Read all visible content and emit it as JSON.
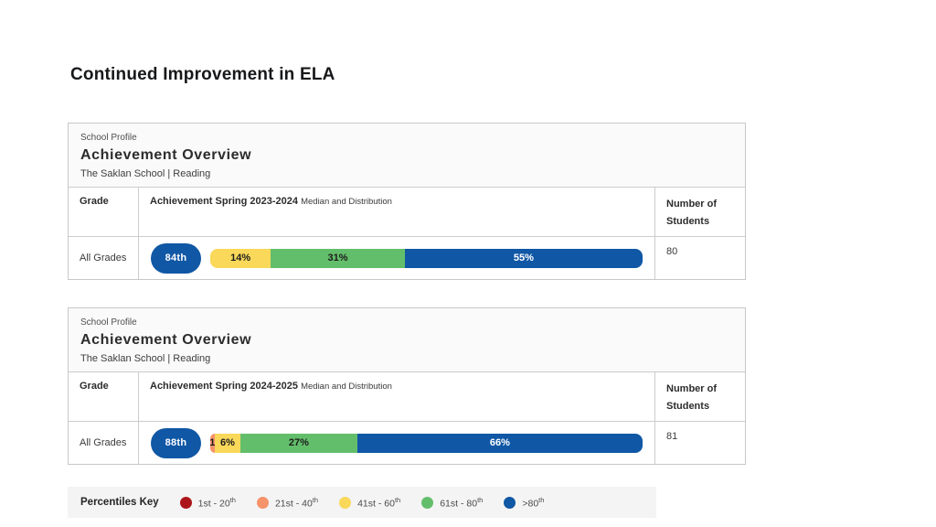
{
  "slide": {
    "title": "Continued Improvement in ELA"
  },
  "colors": {
    "1-20": "#AC1519",
    "21-40": "#F6936A",
    "41-60": "#F9D85A",
    "61-80": "#63BE6B",
    "80+": "#1057A5"
  },
  "cards": [
    {
      "eyebrow": "School Profile",
      "title": "Achievement Overview",
      "subtitle": "The Saklan School | Reading",
      "columns": {
        "grade": "Grade",
        "achievement": "Achievement Spring 2023-2024",
        "achievement_note": "Median and Distribution",
        "students": "Number of Students"
      },
      "row": {
        "grade": "All Grades",
        "median": "84th",
        "students": "80",
        "segments": [
          {
            "bucket": "41-60",
            "pct": 14,
            "label": "14%"
          },
          {
            "bucket": "61-80",
            "pct": 31,
            "label": "31%"
          },
          {
            "bucket": "80+",
            "pct": 55,
            "label": "55%",
            "light": true
          }
        ]
      }
    },
    {
      "eyebrow": "School Profile",
      "title": "Achievement Overview",
      "subtitle": "The Saklan School | Reading",
      "columns": {
        "grade": "Grade",
        "achievement": "Achievement Spring 2024-2025",
        "achievement_note": "Median and Distribution",
        "students": "Number of Students"
      },
      "row": {
        "grade": "All Grades",
        "median": "88th",
        "students": "81",
        "segments": [
          {
            "bucket": "21-40",
            "pct": 1,
            "label": "1"
          },
          {
            "bucket": "41-60",
            "pct": 6,
            "label": "6%"
          },
          {
            "bucket": "61-80",
            "pct": 27,
            "label": "27%"
          },
          {
            "bucket": "80+",
            "pct": 66,
            "label": "66%",
            "light": true
          }
        ]
      }
    }
  ],
  "key": {
    "title": "Percentiles Key",
    "items": [
      {
        "bucket": "1-20",
        "label": "1st - 20",
        "sup": "th"
      },
      {
        "bucket": "21-40",
        "label": "21st - 40",
        "sup": "th"
      },
      {
        "bucket": "41-60",
        "label": "41st - 60",
        "sup": "th"
      },
      {
        "bucket": "61-80",
        "label": "61st - 80",
        "sup": "th"
      },
      {
        "bucket": "80+",
        "label": ">80",
        "sup": "th"
      }
    ]
  },
  "chart_data": [
    {
      "type": "bar",
      "title": "Achievement Spring 2023-2024 Median and Distribution",
      "subtitle": "The Saklan School | Reading",
      "grade": "All Grades",
      "median_percentile": "84th",
      "number_of_students": 80,
      "categories": [
        "41st-60th",
        "61st-80th",
        ">80th"
      ],
      "values": [
        14,
        31,
        55
      ],
      "unit": "percent of students",
      "legend_position": "bottom"
    },
    {
      "type": "bar",
      "title": "Achievement Spring 2024-2025 Median and Distribution",
      "subtitle": "The Saklan School | Reading",
      "grade": "All Grades",
      "median_percentile": "88th",
      "number_of_students": 81,
      "categories": [
        "21st-40th",
        "41st-60th",
        "61st-80th",
        ">80th"
      ],
      "values": [
        1,
        6,
        27,
        66
      ],
      "unit": "percent of students",
      "legend_position": "bottom"
    }
  ]
}
